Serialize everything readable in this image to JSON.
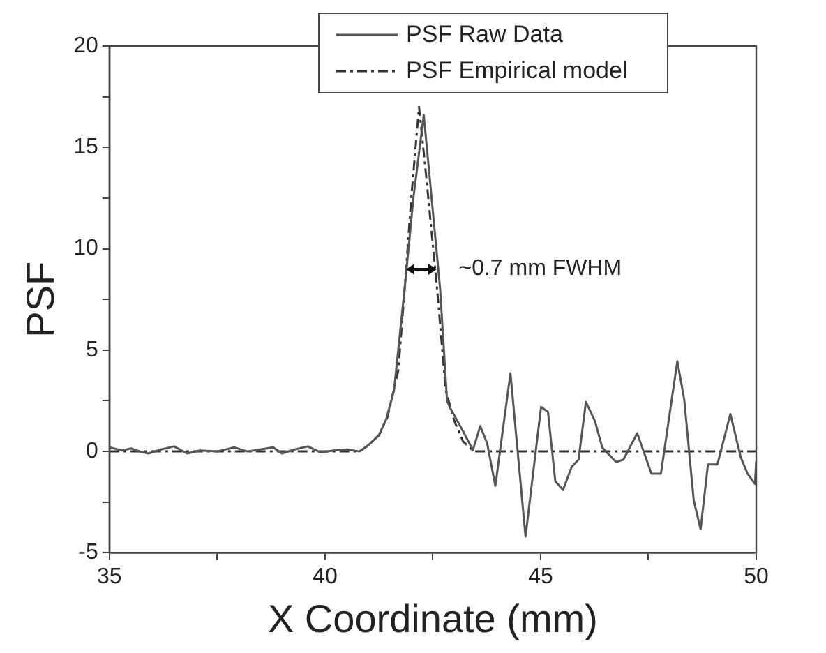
{
  "chart_data": {
    "type": "line",
    "xlabel": "X Coordinate (mm)",
    "ylabel": "PSF",
    "xlim": [
      35,
      50
    ],
    "xticks": [
      35,
      {
        "value": 37.5,
        "label": null
      },
      40,
      {
        "value": 42.5,
        "label": null
      },
      45,
      {
        "value": 47.5,
        "label": null
      },
      50
    ],
    "ylim": [
      -5,
      20
    ],
    "yticks": [
      -5,
      {
        "value": -2.5,
        "label": null
      },
      0,
      {
        "value": 2.5,
        "label": null
      },
      5,
      {
        "value": 7.5,
        "label": null
      },
      10,
      {
        "value": 12.5,
        "label": null
      },
      15,
      {
        "value": 17.5,
        "label": null
      },
      20
    ],
    "legend": "top right",
    "grid": false,
    "marker": "none",
    "annotations": [
      "~0.7 mm FWHM"
    ],
    "series": [
      {
        "name": "PSF Raw Data",
        "color": "#555555",
        "line_style": "solid",
        "x": [
          35,
          35.3,
          35.5,
          35.7,
          35.9,
          36.2,
          36.5,
          36.8,
          37.1,
          37.5,
          37.9,
          38.2,
          38.5,
          38.8,
          39.0,
          39.3,
          39.6,
          39.9,
          40.2,
          40.5,
          40.8,
          41.0,
          41.25,
          41.42,
          41.6,
          41.85,
          42.05,
          42.29,
          42.45,
          42.67,
          42.83,
          42.89,
          43.2,
          43.43,
          43.6,
          43.76,
          43.95,
          44.3,
          44.65,
          45.01,
          45.17,
          45.34,
          45.52,
          45.72,
          45.88,
          46.05,
          46.26,
          46.43,
          46.75,
          46.92,
          47.24,
          47.57,
          47.79,
          48.17,
          48.33,
          48.55,
          48.71,
          48.88,
          49.1,
          49.4,
          49.64,
          49.8,
          49.97,
          50
        ],
        "values": [
          0.2,
          0.05,
          0.15,
          0,
          -0.1,
          0.1,
          0.25,
          -0.1,
          0.05,
          0,
          0.2,
          0,
          0.1,
          0.2,
          -0.1,
          0.1,
          0.25,
          -0.05,
          0.05,
          0.1,
          0,
          0.3,
          0.8,
          1.6,
          3,
          8.1,
          12.5,
          16.6,
          13,
          8,
          2.5,
          2.2,
          1,
          0.07,
          1.25,
          0.4,
          -1.7,
          3.86,
          -4.2,
          2.2,
          1.96,
          -1.47,
          -1.9,
          -0.76,
          -0.4,
          2.44,
          1.5,
          0.19,
          -0.52,
          -0.4,
          0.9,
          -1.1,
          -1.1,
          4.45,
          2.56,
          -2.4,
          -3.84,
          -0.64,
          -0.64,
          1.85,
          -0.28,
          -1.1,
          -1.6,
          -0.5
        ]
      },
      {
        "name": "PSF Empirical model",
        "color": "#333333",
        "line_style": "dashdot",
        "x": [
          35,
          40.8,
          41.0,
          41.25,
          41.45,
          41.7,
          41.85,
          42.0,
          42.18,
          42.35,
          42.6,
          42.8,
          43.0,
          43.2,
          43.45,
          50
        ],
        "values": [
          0,
          0,
          0.3,
          0.8,
          1.7,
          4,
          8.1,
          12.5,
          17,
          13.5,
          8,
          3,
          1.5,
          0.5,
          0,
          0
        ]
      }
    ]
  }
}
